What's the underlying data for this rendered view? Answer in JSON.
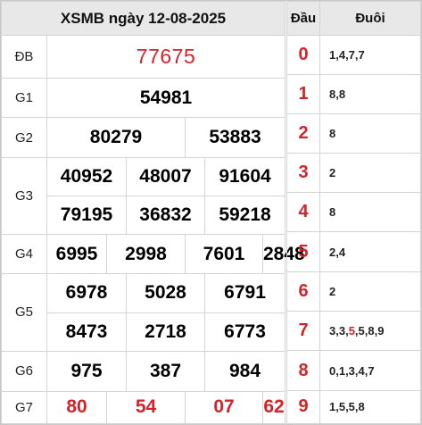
{
  "title": "XSMB ngày 12-08-2025",
  "special": {
    "label": "ĐB",
    "value": "77675"
  },
  "g1": {
    "label": "G1",
    "values": [
      "54981"
    ]
  },
  "g2": {
    "label": "G2",
    "values": [
      "80279",
      "53883"
    ]
  },
  "g3": {
    "label": "G3",
    "values": [
      "40952",
      "48007",
      "91604",
      "79195",
      "36832",
      "59218"
    ]
  },
  "g4": {
    "label": "G4",
    "values": [
      "6995",
      "2998",
      "7601",
      "2848"
    ]
  },
  "g5": {
    "label": "G5",
    "values": [
      "6978",
      "5028",
      "6791",
      "8473",
      "2718",
      "6773"
    ]
  },
  "g6": {
    "label": "G6",
    "values": [
      "975",
      "387",
      "984"
    ]
  },
  "g7": {
    "label": "G7",
    "values": [
      "80",
      "54",
      "07",
      "62"
    ]
  },
  "loto": {
    "head_label": "Đầu",
    "tail_label": "Đuôi",
    "rows": [
      {
        "head": "0",
        "tail": "1,4,7,7"
      },
      {
        "head": "1",
        "tail": "8,8"
      },
      {
        "head": "2",
        "tail": "8"
      },
      {
        "head": "3",
        "tail": "2"
      },
      {
        "head": "4",
        "tail": "8"
      },
      {
        "head": "5",
        "tail": "2,4"
      },
      {
        "head": "6",
        "tail": "2"
      },
      {
        "head": "7",
        "tail_pre": "3,3,",
        "tail_hl": "5",
        "tail_post": ",5,8,9"
      },
      {
        "head": "8",
        "tail": "0,1,3,4,7"
      },
      {
        "head": "9",
        "tail": "1,5,5,8"
      }
    ]
  },
  "colors": {
    "accent": "#d1232a",
    "header_bg": "#e8e8e8",
    "border": "#d4d4d4"
  }
}
